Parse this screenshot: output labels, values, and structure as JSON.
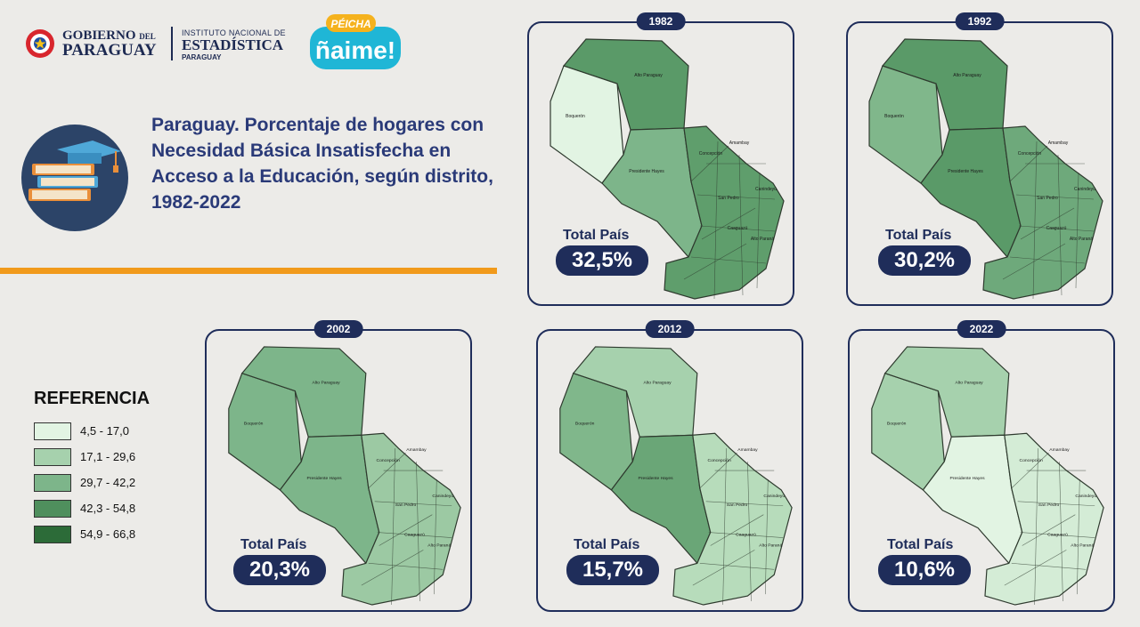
{
  "header": {
    "gov_line1": "GOBIERNO",
    "gov_del": "DEL",
    "gov_line2": "PARAGUAY",
    "ine_line1": "INSTITUTO NACIONAL DE",
    "ine_line2": "ESTADÍSTICA",
    "ine_line3": "PARAGUAY",
    "brand_top": "PÉICHA",
    "brand_main": "ñaime!"
  },
  "title": "Paraguay. Porcentaje de hogares con Necesidad Básica Insatisfecha en Acceso a la Educación, según distrito, 1982-2022",
  "total_label": "Total País",
  "maps": [
    {
      "year": "1982",
      "total": "32,5%",
      "west": "#e2f4e3",
      "alto": "#5a9a68",
      "ph": "#7db58a",
      "east": "#5f9e6c",
      "names": [
        "Alto Paraguay",
        "Boquerón",
        "Presidente Hayes",
        "Concepción",
        "Amambay",
        "San Pedro",
        "Canindeyú",
        "Caaguazú",
        "Alto Paraná"
      ]
    },
    {
      "year": "1992",
      "total": "30,2%",
      "west": "#80b78b",
      "alto": "#5a9a68",
      "ph": "#5a9a68",
      "east": "#6ea97b",
      "names": [
        "Alto Paraguay",
        "Boquerón",
        "Presidente Hayes",
        "Concepción",
        "Amambay",
        "San Pedro",
        "Canindeyú",
        "Caaguazú",
        "Alto Paraná"
      ]
    },
    {
      "year": "2002",
      "total": "20,3%",
      "west": "#7db58a",
      "alto": "#7db58a",
      "ph": "#7db58a",
      "east": "#9cc9a3",
      "names": [
        "Alto Paraguay",
        "Boquerón",
        "Presidente Hayes",
        "Concepción",
        "Amambay",
        "San Pedro",
        "Canindeyú",
        "Caaguazú",
        "Alto Paraná"
      ]
    },
    {
      "year": "2012",
      "total": "15,7%",
      "west": "#80b78b",
      "alto": "#a6d1ad",
      "ph": "#6aa677",
      "east": "#b7dcbb",
      "names": [
        "Alto Paraguay",
        "Boquerón",
        "Presidente Hayes",
        "Concepción",
        "Amambay",
        "San Pedro",
        "Canindeyú",
        "Caaguazú",
        "Alto Paraná"
      ]
    },
    {
      "year": "2022",
      "total": "10,6%",
      "west": "#a6d1ad",
      "alto": "#a6d1ad",
      "ph": "#e2f4e3",
      "east": "#d4ecd6",
      "names": [
        "Alto Paraguay",
        "Boquerón",
        "Presidente Hayes",
        "Concepción",
        "Amambay",
        "San Pedro",
        "Canindeyú",
        "Caaguazú",
        "Alto Paraná"
      ]
    }
  ],
  "legend": {
    "title": "REFERENCIA",
    "items": [
      {
        "label": "4,5 - 17,0",
        "color": "#e2f4e3"
      },
      {
        "label": "17,1 - 29,6",
        "color": "#a6d1ad"
      },
      {
        "label": "29,7 - 42,2",
        "color": "#7db58a"
      },
      {
        "label": "42,3 - 54,8",
        "color": "#4f8f5d"
      },
      {
        "label": "54,9 - 66,8",
        "color": "#2c6b38"
      }
    ]
  },
  "colors": {
    "navy": "#1f2d5a",
    "orange": "#f19a1b",
    "background": "#ecebe8"
  }
}
